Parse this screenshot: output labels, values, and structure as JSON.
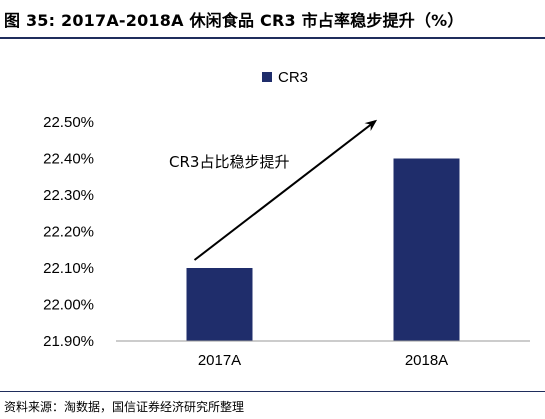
{
  "header": {
    "title": "图 35: 2017A-2018A 休闲食品 CR3 市占率稳步提升（%）"
  },
  "footer": {
    "source": "资料来源：淘数据，国信证券经济研究所整理"
  },
  "colors": {
    "bar": "#1f2d6b",
    "rule": "#1f2d5c",
    "axis": "#999999",
    "text": "#000000"
  },
  "chart_data": {
    "type": "bar",
    "title": "",
    "xlabel": "",
    "ylabel": "",
    "categories": [
      "2017A",
      "2018A"
    ],
    "series": [
      {
        "name": "CR3",
        "values": [
          22.1,
          22.4
        ]
      }
    ],
    "ylim": [
      21.9,
      22.5
    ],
    "yticks": [
      21.9,
      22.0,
      22.1,
      22.2,
      22.3,
      22.4,
      22.5
    ],
    "ytick_labels": [
      "21.90%",
      "22.00%",
      "22.10%",
      "22.20%",
      "22.30%",
      "22.40%",
      "22.50%"
    ],
    "grid": false,
    "legend": "top-center",
    "annotation": {
      "text": "CR3占比稳步提升",
      "arrow": {
        "from": [
          "2017A",
          22.1
        ],
        "to": [
          "2018A",
          22.5
        ]
      }
    }
  }
}
